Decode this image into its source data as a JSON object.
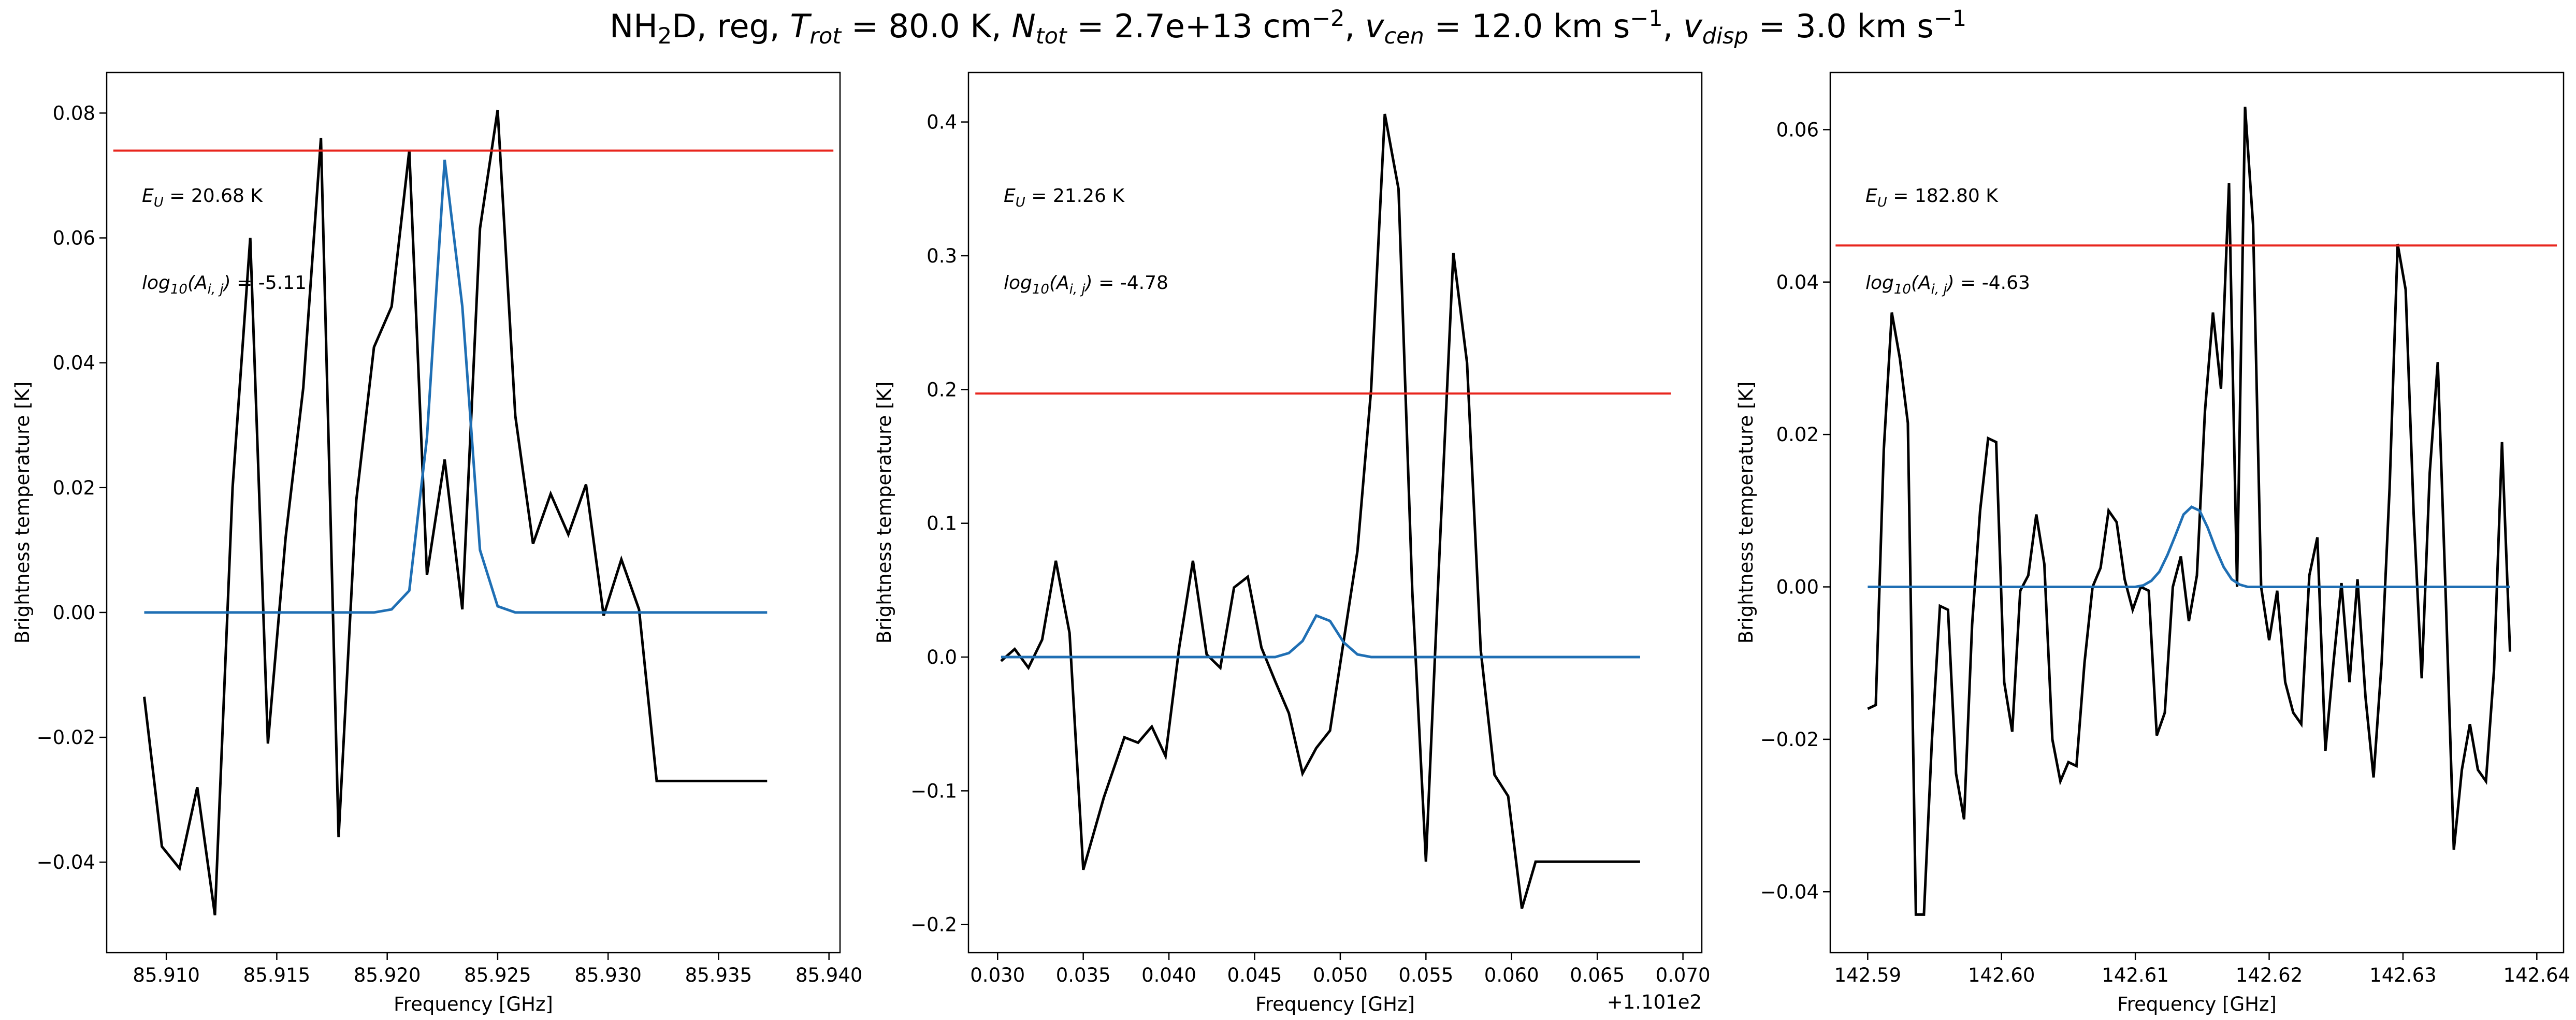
{
  "title": {
    "species": "NH",
    "species_sub": "2",
    "species_end": "D, reg, ",
    "trot_sym": "T",
    "trot_sub": "rot",
    "trot_val": " =  80.0 K, ",
    "ntot_sym": "N",
    "ntot_sub": "tot",
    "ntot_val": " =  2.7e+13 cm",
    "ntot_exp": "−2",
    "vcen_pre": ", ",
    "vcen_sym": "v",
    "vcen_sub": "cen",
    "vcen_val": " =  12.0 km s",
    "vcen_exp": "−1",
    "vdisp_pre": ", ",
    "vdisp_sym": "v",
    "vdisp_sub": "disp",
    "vdisp_val": " =  3.0 km s",
    "vdisp_exp": "−1"
  },
  "colors": {
    "observed": "#000000",
    "model": "#1f6fb4",
    "threshold": "#e8261e"
  },
  "chart_data": [
    {
      "type": "line",
      "xlabel": "Frequency [GHz]",
      "ylabel": "Brightness temperature [K]",
      "xlim": [
        85.9073,
        85.9405
      ],
      "ylim": [
        -0.0545,
        0.0865
      ],
      "xticks": [
        85.91,
        85.915,
        85.92,
        85.925,
        85.93,
        85.935,
        85.94
      ],
      "xtick_labels": [
        "85.910",
        "85.915",
        "85.920",
        "85.925",
        "85.930",
        "85.935",
        "85.940"
      ],
      "yticks": [
        -0.04,
        -0.02,
        0.0,
        0.02,
        0.04,
        0.06,
        0.08
      ],
      "ytick_labels": [
        "−0.04",
        "−0.02",
        "0.00",
        "0.02",
        "0.04",
        "0.06",
        "0.08"
      ],
      "x_offset_label": "",
      "annotations": {
        "eu_val": " = 20.68 K",
        "log_val": " = -5.11"
      },
      "threshold": {
        "y": 0.074,
        "x": [
          85.9076,
          85.9402
        ]
      },
      "series": [
        {
          "role": "observed",
          "x": [
            85.909,
            85.9098,
            85.9106,
            85.9114,
            85.9122,
            85.913,
            85.9138,
            85.9146,
            85.9154,
            85.9162,
            85.917,
            85.9178,
            85.9186,
            85.9194,
            85.9202,
            85.921,
            85.9218,
            85.9226,
            85.9234,
            85.9242,
            85.925,
            85.9258,
            85.9266,
            85.9274,
            85.9282,
            85.929,
            85.9298,
            85.9306,
            85.9314,
            85.9322,
            85.933,
            85.9338,
            85.9346,
            85.9354,
            85.9362,
            85.9372
          ],
          "y": [
            -0.0135,
            -0.0375,
            -0.041,
            -0.028,
            -0.0485,
            0.02,
            0.06,
            -0.021,
            0.012,
            0.036,
            0.076,
            -0.036,
            0.018,
            0.0425,
            0.049,
            0.074,
            0.006,
            0.0245,
            0.0005,
            0.0615,
            0.0805,
            0.0315,
            0.011,
            0.019,
            0.0125,
            0.0205,
            -0.0005,
            0.0085,
            0.0005,
            -0.027,
            -0.027,
            -0.027,
            -0.027,
            -0.027,
            -0.027,
            -0.027
          ]
        },
        {
          "role": "model",
          "x": [
            85.909,
            85.9194,
            85.9202,
            85.921,
            85.9218,
            85.9226,
            85.9234,
            85.9242,
            85.925,
            85.9258,
            85.9266,
            85.9372
          ],
          "y": [
            0.0,
            0.0,
            0.0005,
            0.0035,
            0.028,
            0.0725,
            0.049,
            0.01,
            0.001,
            0.0,
            0.0,
            0.0
          ]
        }
      ]
    },
    {
      "type": "line",
      "xlabel": "Frequency [GHz]",
      "ylabel": "Brightness temperature [K]",
      "xlim": [
        0.0283,
        0.0711
      ],
      "ylim": [
        -0.221,
        0.437
      ],
      "xticks": [
        0.03,
        0.035,
        0.04,
        0.045,
        0.05,
        0.055,
        0.06,
        0.065,
        0.07
      ],
      "xtick_labels": [
        "0.030",
        "0.035",
        "0.040",
        "0.045",
        "0.050",
        "0.055",
        "0.060",
        "0.065",
        "0.070"
      ],
      "yticks": [
        -0.2,
        -0.1,
        0.0,
        0.1,
        0.2,
        0.3,
        0.4
      ],
      "ytick_labels": [
        "−0.2",
        "−0.1",
        "0.0",
        "0.1",
        "0.2",
        "0.3",
        "0.4"
      ],
      "x_offset_label": "+1.101e2",
      "annotations": {
        "eu_val": " = 21.26 K",
        "log_val": " = -4.78"
      },
      "threshold": {
        "y": 0.197,
        "x": [
          0.0287,
          0.0693
        ]
      },
      "series": [
        {
          "role": "observed",
          "x": [
            0.0302,
            0.031,
            0.0318,
            0.0326,
            0.0334,
            0.0342,
            0.035,
            0.0362,
            0.0374,
            0.0382,
            0.039,
            0.0398,
            0.0406,
            0.0414,
            0.0422,
            0.043,
            0.0438,
            0.0446,
            0.0454,
            0.0462,
            0.047,
            0.0478,
            0.0486,
            0.0494,
            0.0502,
            0.051,
            0.0518,
            0.0526,
            0.0534,
            0.0542,
            0.055,
            0.0558,
            0.0566,
            0.0574,
            0.0582,
            0.059,
            0.0598,
            0.0606,
            0.0614,
            0.0622,
            0.063,
            0.0638,
            0.0646,
            0.0654,
            0.0662,
            0.0675
          ],
          "y": [
            -0.003,
            0.006,
            -0.008,
            0.013,
            0.072,
            0.018,
            -0.159,
            -0.105,
            -0.06,
            -0.064,
            -0.052,
            -0.074,
            0.007,
            0.072,
            0.002,
            -0.008,
            0.052,
            0.06,
            0.007,
            -0.018,
            -0.042,
            -0.087,
            -0.068,
            -0.055,
            0.012,
            0.079,
            0.2,
            0.406,
            0.35,
            0.05,
            -0.153,
            0.08,
            0.302,
            0.22,
            0.005,
            -0.088,
            -0.104,
            -0.188,
            -0.153,
            -0.153,
            -0.153,
            -0.153,
            -0.153,
            -0.153,
            -0.153,
            -0.153
          ]
        },
        {
          "role": "model",
          "x": [
            0.0302,
            0.0462,
            0.047,
            0.0478,
            0.0486,
            0.0494,
            0.0502,
            0.051,
            0.0518,
            0.0526,
            0.0675
          ],
          "y": [
            0.0,
            0.0,
            0.003,
            0.012,
            0.031,
            0.027,
            0.011,
            0.002,
            0.0,
            0.0,
            0.0
          ]
        }
      ]
    },
    {
      "type": "line",
      "xlabel": "Frequency [GHz]",
      "ylabel": "Brightness temperature [K]",
      "xlim": [
        142.5872,
        142.642
      ],
      "ylim": [
        -0.048,
        0.0675
      ],
      "xticks": [
        142.59,
        142.6,
        142.61,
        142.62,
        142.63,
        142.64
      ],
      "xtick_labels": [
        "142.59",
        "142.60",
        "142.61",
        "142.62",
        "142.63",
        "142.64"
      ],
      "yticks": [
        -0.04,
        -0.02,
        0.0,
        0.02,
        0.04,
        0.06
      ],
      "ytick_labels": [
        "−0.04",
        "−0.02",
        "0.00",
        "0.02",
        "0.04",
        "0.06"
      ],
      "x_offset_label": "",
      "annotations": {
        "eu_val": " = 182.80 K",
        "log_val": " = -4.63"
      },
      "threshold": {
        "y": 0.0448,
        "x": [
          142.5876,
          142.6415
        ]
      },
      "series": [
        {
          "role": "observed",
          "x": [
            142.59,
            142.5906,
            142.5912,
            142.5918,
            142.5924,
            142.593,
            142.5936,
            142.5942,
            142.5948,
            142.5954,
            142.596,
            142.5966,
            142.5972,
            142.5978,
            142.5984,
            142.599,
            142.5996,
            142.6002,
            142.6008,
            142.6014,
            142.602,
            142.6026,
            142.6032,
            142.6038,
            142.6044,
            142.605,
            142.6056,
            142.6062,
            142.6068,
            142.6074,
            142.608,
            142.6086,
            142.6092,
            142.6098,
            142.6104,
            142.611,
            142.6116,
            142.6122,
            142.6128,
            142.6134,
            142.614,
            142.6146,
            142.6152,
            142.6158,
            142.6164,
            142.617,
            142.6176,
            142.6182,
            142.6188,
            142.6194,
            142.62,
            142.6206,
            142.6212,
            142.6218,
            142.6224,
            142.623,
            142.6236,
            142.6242,
            142.6248,
            142.6254,
            142.626,
            142.6266,
            142.6272,
            142.6278,
            142.6284,
            142.629,
            142.6296,
            142.6302,
            142.6308,
            142.6314,
            142.632,
            142.6326,
            142.6332,
            142.6338,
            142.6344,
            142.635,
            142.6356,
            142.6362,
            142.6368,
            142.6374,
            142.638
          ],
          "y": [
            -0.016,
            -0.0155,
            0.018,
            0.036,
            0.03,
            0.0215,
            -0.043,
            -0.043,
            -0.02,
            -0.0025,
            -0.003,
            -0.0245,
            -0.0305,
            -0.005,
            0.01,
            0.0195,
            0.019,
            -0.0125,
            -0.019,
            -0.0005,
            0.0015,
            0.0095,
            0.003,
            -0.02,
            -0.0255,
            -0.023,
            -0.0235,
            -0.01,
            0.0,
            0.0025,
            0.01,
            0.0085,
            0.001,
            -0.003,
            0.0,
            -0.0005,
            -0.0195,
            -0.0165,
            0.0,
            0.004,
            -0.0045,
            0.0015,
            0.023,
            0.036,
            0.026,
            0.053,
            0.0,
            0.063,
            0.0475,
            0.0,
            -0.007,
            -0.0005,
            -0.0125,
            -0.0165,
            -0.018,
            0.0015,
            0.0065,
            -0.0215,
            -0.01,
            0.0005,
            -0.0125,
            0.001,
            -0.0145,
            -0.025,
            -0.01,
            0.013,
            0.045,
            0.039,
            0.0095,
            -0.012,
            0.015,
            0.0295,
            -0.0015,
            -0.0345,
            -0.024,
            -0.018,
            -0.024,
            -0.0255,
            -0.011,
            0.019,
            -0.0085
          ],
          "_note_": ""
        },
        {
          "role": "model",
          "x": [
            142.59,
            142.61,
            142.6106,
            142.6112,
            142.6118,
            142.6124,
            142.613,
            142.6136,
            142.6142,
            142.6148,
            142.6154,
            142.616,
            142.6166,
            142.6172,
            142.6178,
            142.6184,
            142.638
          ],
          "y": [
            0.0,
            0.0,
            0.0002,
            0.0008,
            0.002,
            0.0042,
            0.0068,
            0.0095,
            0.0105,
            0.01,
            0.0078,
            0.005,
            0.0026,
            0.001,
            0.0003,
            0.0,
            0.0
          ]
        }
      ]
    }
  ]
}
